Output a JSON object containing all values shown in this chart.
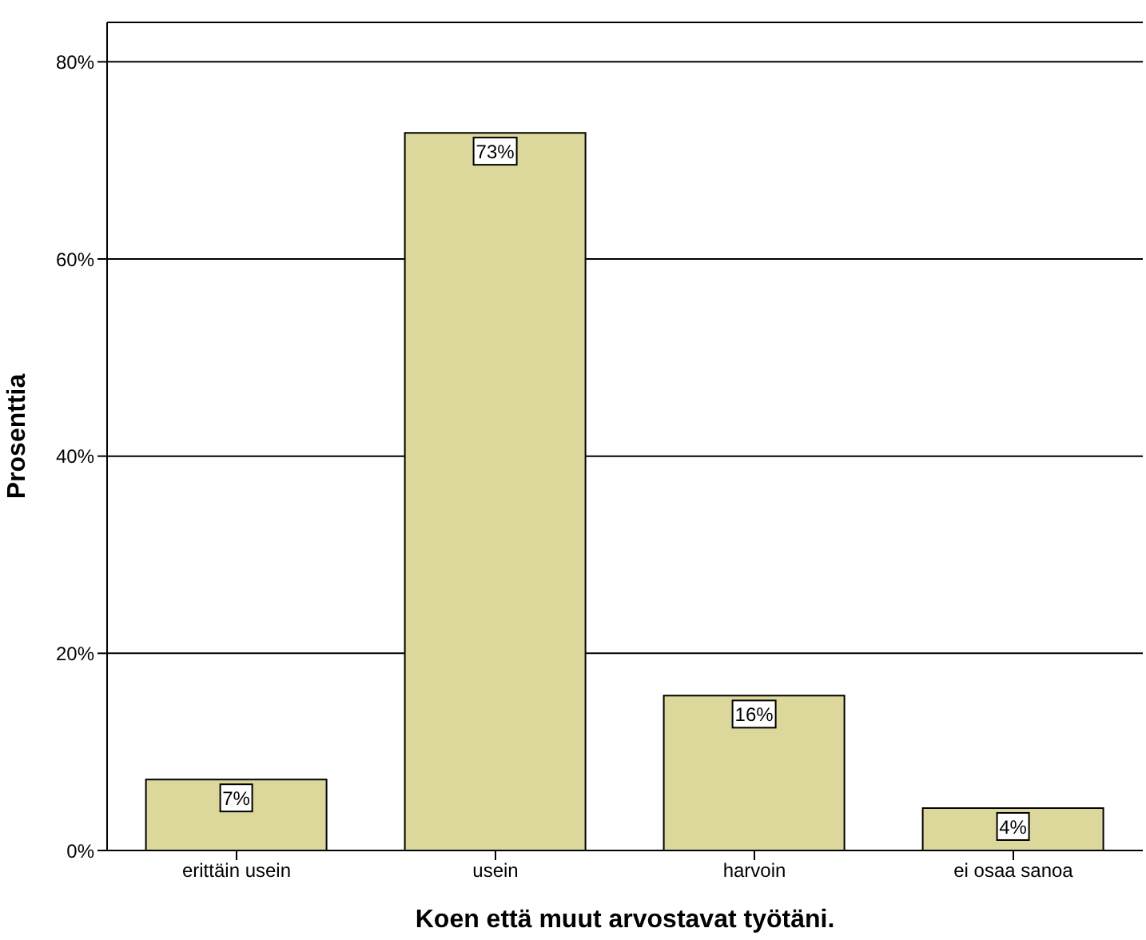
{
  "chart_data": {
    "type": "bar",
    "xlabel": "Koen  että muut arvostavat työtäni.",
    "ylabel": "Prosenttia",
    "categories": [
      "erittäin usein",
      "usein",
      "harvoin",
      "ei osaa sanoa"
    ],
    "values": [
      7.2,
      72.8,
      15.7,
      4.3
    ],
    "value_labels": [
      "7%",
      "73%",
      "16%",
      "4%"
    ],
    "color": "#dcd89c",
    "ylim": [
      0,
      84
    ],
    "yticks": [
      {
        "value": 0,
        "label": "0%"
      },
      {
        "value": 20,
        "label": "20%"
      },
      {
        "value": 40,
        "label": "40%"
      },
      {
        "value": 60,
        "label": "60%"
      },
      {
        "value": 80,
        "label": "80%"
      }
    ],
    "grid": "y",
    "legend": false
  }
}
